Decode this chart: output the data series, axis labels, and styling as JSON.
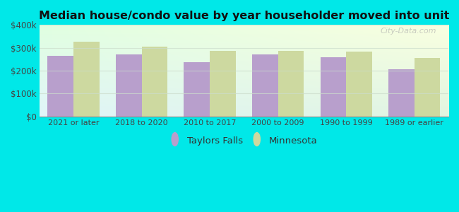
{
  "title": "Median house/condo value by year householder moved into unit",
  "categories": [
    "2021 or later",
    "2018 to 2020",
    "2010 to 2017",
    "2000 to 2009",
    "1990 to 1999",
    "1989 or earlier"
  ],
  "taylors_falls": [
    265000,
    270000,
    238000,
    271000,
    258000,
    207000
  ],
  "minnesota": [
    327000,
    305000,
    287000,
    285000,
    282000,
    255000
  ],
  "bar_color_tf": "#b89fcc",
  "bar_color_mn": "#cdd9a0",
  "background_color": "#00e8e8",
  "ylim": [
    0,
    400000
  ],
  "yticks": [
    0,
    100000,
    200000,
    300000,
    400000
  ],
  "ytick_labels": [
    "$0",
    "$100k",
    "$200k",
    "$300k",
    "$400k"
  ],
  "legend_labels": [
    "Taylors Falls",
    "Minnesota"
  ],
  "watermark": "City-Data.com",
  "bar_width": 0.38
}
